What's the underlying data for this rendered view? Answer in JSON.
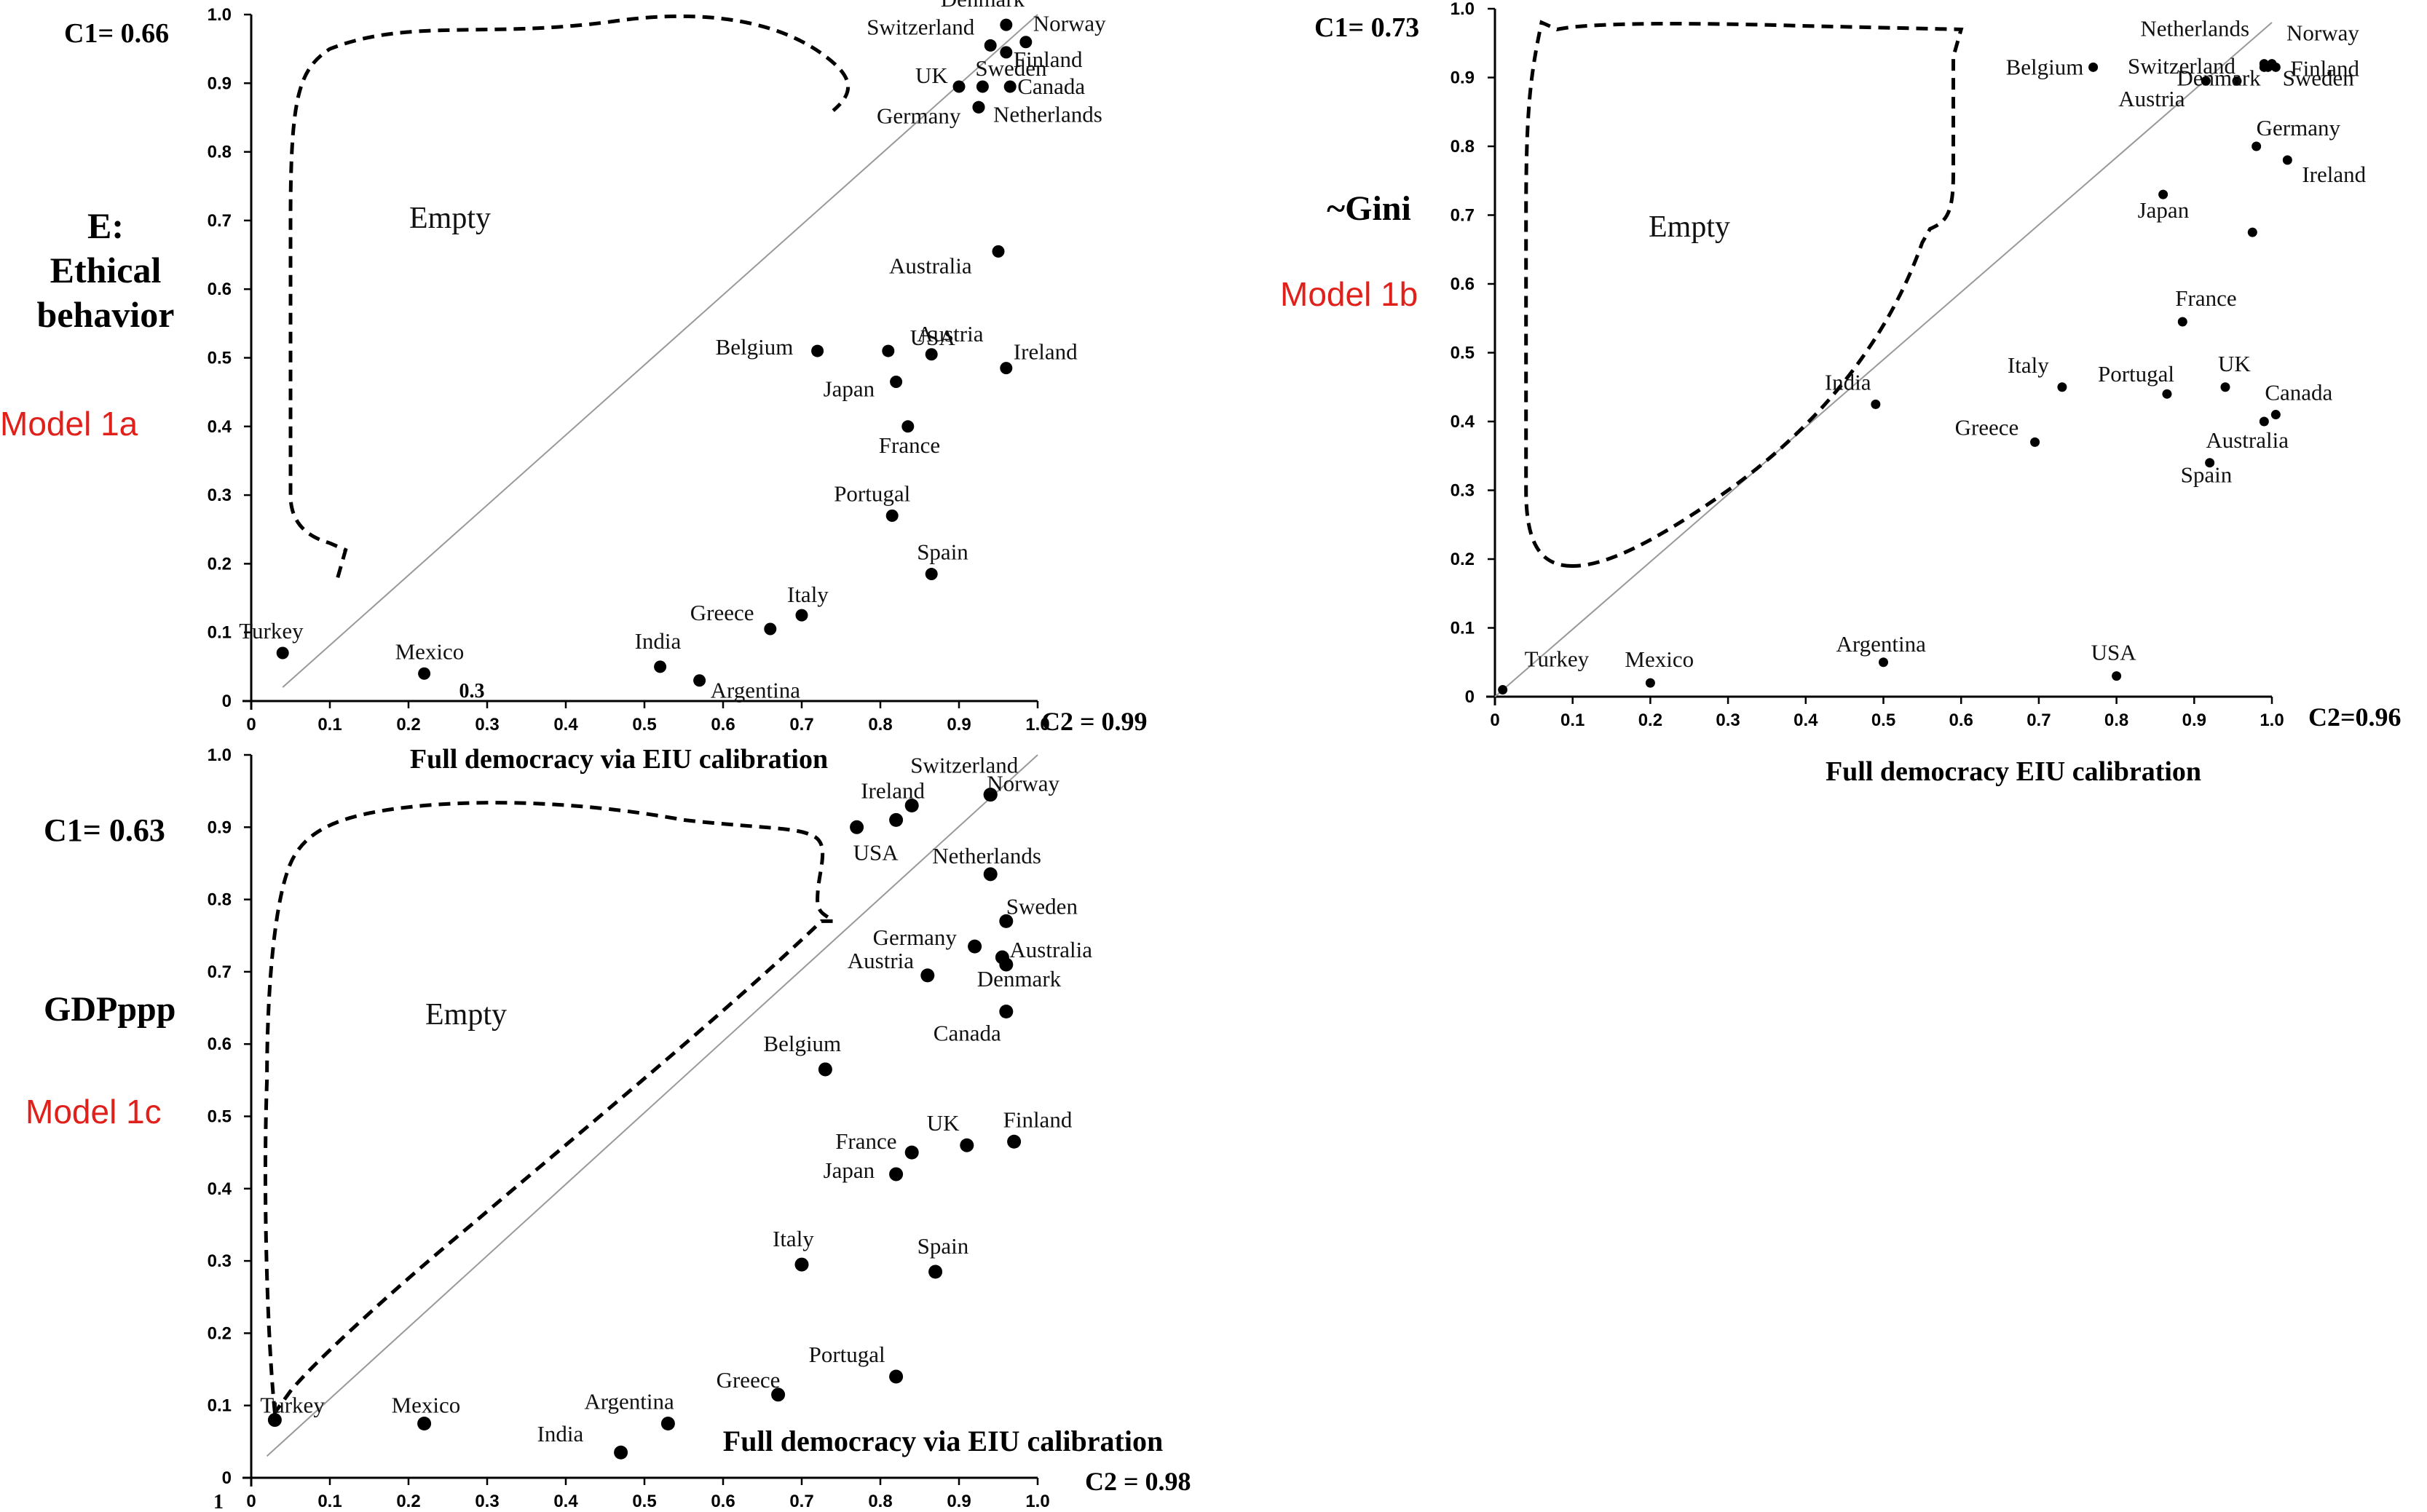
{
  "chart_data": [
    {
      "id": "1a",
      "type": "scatter",
      "model_label": "Model 1a",
      "condition_label": [
        "E:",
        "Ethical",
        "behavior"
      ],
      "c1": "C1= 0.66",
      "c2": "C2 = 0.99",
      "xlabel": "Full democracy via EIU calibration",
      "empty_label": "Empty",
      "xlim": [
        0,
        1
      ],
      "ylim": [
        0,
        1
      ],
      "x_ticks": [
        "0",
        "0.1",
        "0.2",
        "0.3",
        "0.4",
        "0.5",
        "0.6",
        "0.7",
        "0.8",
        "0.9",
        "1.0"
      ],
      "y_ticks": [
        "0",
        "0.1",
        "0.2",
        "0.3",
        "0.4",
        "0.5",
        "0.6",
        "0.7",
        "0.8",
        "0.9",
        "1.0"
      ],
      "stray_tick": "0.3",
      "points": [
        {
          "label": "Denmark",
          "x": 0.96,
          "y": 0.985
        },
        {
          "label": "Switzerland",
          "x": 0.94,
          "y": 0.955
        },
        {
          "label": "Norway",
          "x": 0.985,
          "y": 0.96
        },
        {
          "label": "Finland",
          "x": 0.96,
          "y": 0.945
        },
        {
          "label": "UK",
          "x": 0.9,
          "y": 0.895
        },
        {
          "label": "Sweden",
          "x": 0.93,
          "y": 0.895
        },
        {
          "label": "Canada",
          "x": 0.965,
          "y": 0.895
        },
        {
          "label": "Germany",
          "x": 0.925,
          "y": 0.865
        },
        {
          "label": "Netherlands",
          "x": 0.925,
          "y": 0.865
        },
        {
          "label": "Australia",
          "x": 0.95,
          "y": 0.655
        },
        {
          "label": "Belgium",
          "x": 0.72,
          "y": 0.51
        },
        {
          "label": "USA",
          "x": 0.81,
          "y": 0.51
        },
        {
          "label": "Austria",
          "x": 0.865,
          "y": 0.505
        },
        {
          "label": "Ireland",
          "x": 0.96,
          "y": 0.485
        },
        {
          "label": "Japan",
          "x": 0.82,
          "y": 0.465
        },
        {
          "label": "France",
          "x": 0.835,
          "y": 0.4
        },
        {
          "label": "Portugal",
          "x": 0.815,
          "y": 0.27
        },
        {
          "label": "Spain",
          "x": 0.865,
          "y": 0.185
        },
        {
          "label": "Italy",
          "x": 0.7,
          "y": 0.125
        },
        {
          "label": "Greece",
          "x": 0.66,
          "y": 0.105
        },
        {
          "label": "Turkey",
          "x": 0.04,
          "y": 0.07
        },
        {
          "label": "Mexico",
          "x": 0.22,
          "y": 0.04
        },
        {
          "label": "India",
          "x": 0.52,
          "y": 0.05
        },
        {
          "label": "Argentina",
          "x": 0.57,
          "y": 0.03
        }
      ]
    },
    {
      "id": "1b",
      "type": "scatter",
      "model_label": "Model 1b",
      "condition_label": [
        "~Gini"
      ],
      "c1": "C1= 0.73",
      "c2": "C2=0.96",
      "xlabel": "Full democracy EIU calibration",
      "empty_label": "Empty",
      "xlim": [
        0,
        1
      ],
      "ylim": [
        0,
        1
      ],
      "x_ticks": [
        "0",
        "0.1",
        "0.2",
        "0.3",
        "0.4",
        "0.5",
        "0.6",
        "0.7",
        "0.8",
        "0.9",
        "1.0"
      ],
      "y_ticks": [
        "0",
        "0.1",
        "0.2",
        "0.3",
        "0.4",
        "0.5",
        "0.6",
        "0.7",
        "0.8",
        "0.9",
        "1.0"
      ],
      "points": [
        {
          "label": "Netherlands",
          "x": 0.99,
          "y": 0.92
        },
        {
          "label": "Norway",
          "x": 1.0,
          "y": 0.92
        },
        {
          "label": "Switzerland",
          "x": 0.955,
          "y": 0.895
        },
        {
          "label": "Finland",
          "x": 1.005,
          "y": 0.915
        },
        {
          "label": "Denmark",
          "x": 0.99,
          "y": 0.915
        },
        {
          "label": "Sweden",
          "x": 0.995,
          "y": 0.915
        },
        {
          "label": "Belgium",
          "x": 0.77,
          "y": 0.915
        },
        {
          "label": "Austria",
          "x": 0.915,
          "y": 0.895
        },
        {
          "label": "Germany",
          "x": 0.98,
          "y": 0.8
        },
        {
          "label": "Ireland",
          "x": 1.02,
          "y": 0.78
        },
        {
          "label": "Japan",
          "x": 0.86,
          "y": 0.73
        },
        {
          "label": "",
          "x": 0.975,
          "y": 0.675
        },
        {
          "label": "France",
          "x": 0.885,
          "y": 0.545
        },
        {
          "label": "Italy",
          "x": 0.73,
          "y": 0.45
        },
        {
          "label": "Portugal",
          "x": 0.865,
          "y": 0.44
        },
        {
          "label": "UK",
          "x": 0.94,
          "y": 0.45
        },
        {
          "label": "Canada",
          "x": 1.005,
          "y": 0.41
        },
        {
          "label": "Australia",
          "x": 0.99,
          "y": 0.4
        },
        {
          "label": "Spain",
          "x": 0.92,
          "y": 0.34
        },
        {
          "label": "India",
          "x": 0.49,
          "y": 0.425
        },
        {
          "label": "Greece",
          "x": 0.695,
          "y": 0.37
        },
        {
          "label": "Turkey",
          "x": 0.01,
          "y": 0.01
        },
        {
          "label": "Mexico",
          "x": 0.2,
          "y": 0.02
        },
        {
          "label": "Argentina",
          "x": 0.5,
          "y": 0.05
        },
        {
          "label": "USA",
          "x": 0.8,
          "y": 0.03
        }
      ]
    },
    {
      "id": "1c",
      "type": "scatter",
      "model_label": "Model 1c",
      "condition_label": [
        "GDPppp"
      ],
      "c1": "C1= 0.63",
      "c2": "C2 = 0.98",
      "xlabel": "Full democracy via  EIU calibration",
      "empty_label": "Empty",
      "xlim": [
        0,
        1
      ],
      "ylim": [
        0,
        1
      ],
      "x_ticks": [
        "0",
        "0.1",
        "0.2",
        "0.3",
        "0.4",
        "0.5",
        "0.6",
        "0.7",
        "0.8",
        "0.9",
        "1.0"
      ],
      "y_ticks": [
        "0",
        "0.1",
        "0.2",
        "0.3",
        "0.4",
        "0.5",
        "0.6",
        "0.7",
        "0.8",
        "0.9",
        "1.0"
      ],
      "stray_tick": "1",
      "points": [
        {
          "label": "Switzerland",
          "x": 0.94,
          "y": 0.945
        },
        {
          "label": "Norway",
          "x": 0.94,
          "y": 0.945
        },
        {
          "label": "Ireland",
          "x": 0.84,
          "y": 0.93
        },
        {
          "label": "",
          "x": 0.82,
          "y": 0.91
        },
        {
          "label": "USA",
          "x": 0.77,
          "y": 0.9
        },
        {
          "label": "Netherlands",
          "x": 0.94,
          "y": 0.835
        },
        {
          "label": "Sweden",
          "x": 0.96,
          "y": 0.77
        },
        {
          "label": "Germany",
          "x": 0.92,
          "y": 0.735
        },
        {
          "label": "Australia",
          "x": 0.955,
          "y": 0.72
        },
        {
          "label": "Denmark",
          "x": 0.96,
          "y": 0.71
        },
        {
          "label": "Austria",
          "x": 0.86,
          "y": 0.695
        },
        {
          "label": "Canada",
          "x": 0.96,
          "y": 0.645
        },
        {
          "label": "Belgium",
          "x": 0.73,
          "y": 0.565
        },
        {
          "label": "Finland",
          "x": 0.97,
          "y": 0.465
        },
        {
          "label": "UK",
          "x": 0.91,
          "y": 0.46
        },
        {
          "label": "France",
          "x": 0.84,
          "y": 0.45
        },
        {
          "label": "Japan",
          "x": 0.82,
          "y": 0.42
        },
        {
          "label": "Italy",
          "x": 0.7,
          "y": 0.295
        },
        {
          "label": "Spain",
          "x": 0.87,
          "y": 0.285
        },
        {
          "label": "Portugal",
          "x": 0.82,
          "y": 0.14
        },
        {
          "label": "Greece",
          "x": 0.67,
          "y": 0.115
        },
        {
          "label": "Turkey",
          "x": 0.03,
          "y": 0.08
        },
        {
          "label": "Mexico",
          "x": 0.22,
          "y": 0.075
        },
        {
          "label": "Argentina",
          "x": 0.53,
          "y": 0.075
        },
        {
          "label": "India",
          "x": 0.47,
          "y": 0.035
        }
      ]
    }
  ]
}
